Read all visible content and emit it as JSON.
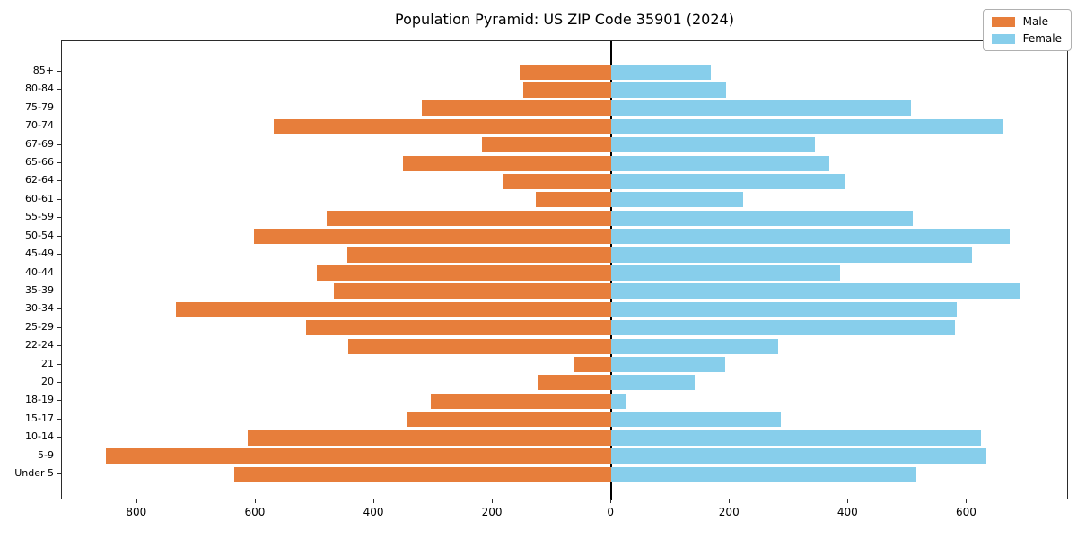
{
  "title": "Population Pyramid: US ZIP Code 35901 (2024)",
  "legend": {
    "male_label": "Male",
    "female_label": "Female"
  },
  "colors": {
    "male": "#E77E3B",
    "female": "#87CEEB",
    "axis": "#2b2b2b",
    "zero_line": "#000000"
  },
  "chart_data": {
    "type": "bar",
    "variant": "population-pyramid",
    "title": "Population Pyramid: US ZIP Code 35901 (2024)",
    "categories_top_to_bottom": [
      "85+",
      "80-84",
      "75-79",
      "70-74",
      "67-69",
      "65-66",
      "62-64",
      "60-61",
      "55-59",
      "50-54",
      "45-49",
      "40-44",
      "35-39",
      "30-34",
      "25-29",
      "22-24",
      "21",
      "20",
      "18-19",
      "15-17",
      "10-14",
      "5-9",
      "Under 5"
    ],
    "series": [
      {
        "name": "Male",
        "side": "left",
        "color": "#E77E3B",
        "values": [
          155,
          148,
          320,
          570,
          218,
          352,
          182,
          127,
          480,
          603,
          445,
          497,
          468,
          735,
          515,
          444,
          64,
          123,
          305,
          345,
          614,
          853,
          636
        ]
      },
      {
        "name": "Female",
        "side": "right",
        "color": "#87CEEB",
        "values": [
          168,
          193,
          505,
          660,
          344,
          368,
          394,
          223,
          509,
          672,
          608,
          386,
          688,
          582,
          580,
          282,
          192,
          141,
          26,
          286,
          624,
          633,
          514
        ]
      }
    ],
    "x_ticks": [
      -800,
      -600,
      -400,
      -200,
      0,
      200,
      400,
      600
    ],
    "x_tick_labels": [
      "800",
      "600",
      "400",
      "200",
      "0",
      "200",
      "400",
      "600"
    ],
    "xlim": [
      -927,
      772
    ],
    "grid": false,
    "legend_entries": [
      "Male",
      "Female"
    ],
    "legend_position": "upper right"
  }
}
